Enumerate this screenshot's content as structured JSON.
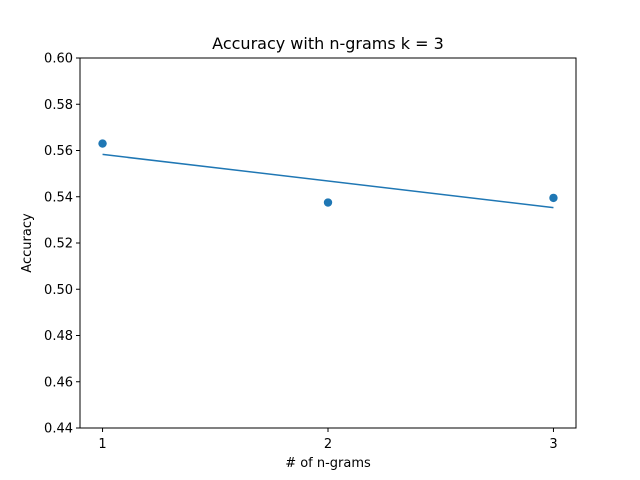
{
  "chart_data": {
    "type": "scatter",
    "title": "Accuracy with n-grams k = 3",
    "xlabel": "# of n-grams",
    "ylabel": "Accuracy",
    "xlim": [
      0.9,
      3.1
    ],
    "ylim": [
      0.44,
      0.6
    ],
    "x_ticks": [
      1,
      2,
      3
    ],
    "x_tick_labels": [
      "1",
      "2",
      "3"
    ],
    "y_ticks": [
      0.44,
      0.46,
      0.48,
      0.5,
      0.52,
      0.54,
      0.56,
      0.58,
      0.6
    ],
    "y_tick_labels": [
      "0.44",
      "0.46",
      "0.48",
      "0.50",
      "0.52",
      "0.54",
      "0.56",
      "0.58",
      "0.60"
    ],
    "grid": false,
    "series": [
      {
        "kind": "scatter",
        "x": [
          1,
          2,
          3
        ],
        "y": [
          0.563,
          0.5375,
          0.5395
        ],
        "color": "#1f77b4"
      },
      {
        "kind": "line",
        "x": [
          1,
          3
        ],
        "y": [
          0.5583,
          0.5353
        ],
        "color": "#1f77b4"
      }
    ]
  }
}
